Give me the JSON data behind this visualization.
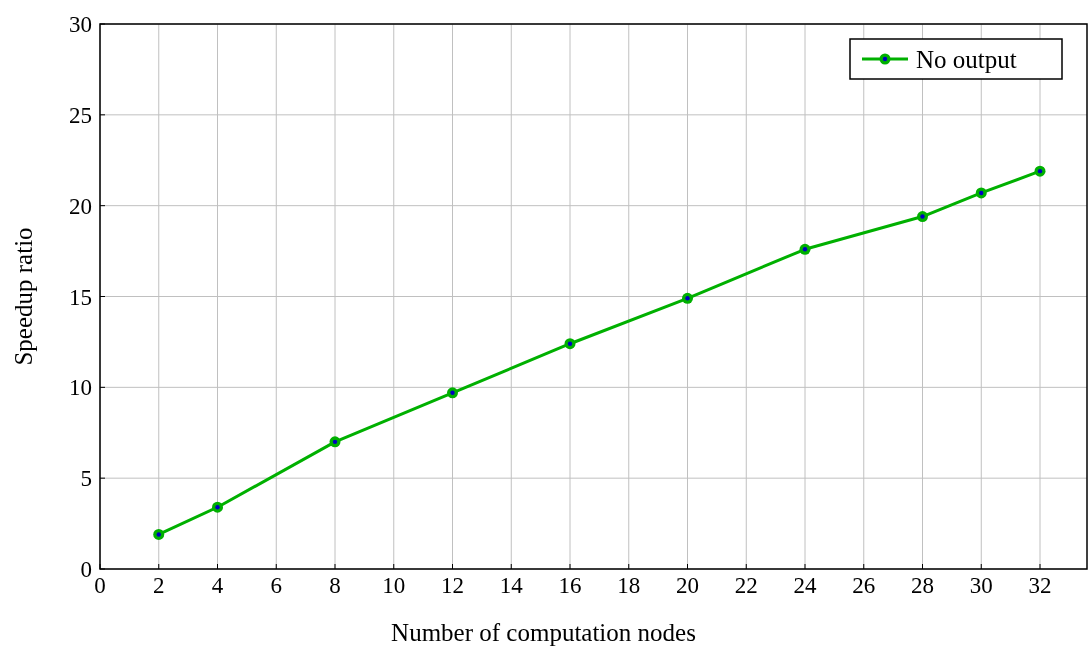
{
  "chart_data": {
    "type": "line",
    "xlabel": "Number of computation nodes",
    "ylabel": "Speedup ratio",
    "x": [
      2,
      4,
      8,
      12,
      16,
      20,
      24,
      28,
      30,
      32
    ],
    "series": [
      {
        "name": "No output",
        "color": "#00b000",
        "values": [
          1.9,
          3.4,
          7.0,
          9.7,
          12.4,
          14.9,
          17.6,
          19.4,
          20.7,
          21.9
        ]
      }
    ],
    "xlim": [
      0,
      33.6
    ],
    "xticks": [
      0,
      2,
      4,
      6,
      8,
      10,
      12,
      14,
      16,
      18,
      20,
      22,
      24,
      26,
      28,
      30,
      32
    ],
    "ylim": [
      0,
      30
    ],
    "yticks": [
      0,
      5,
      10,
      15,
      20,
      25,
      30
    ],
    "grid": true,
    "legend": "top right",
    "marker": "circle",
    "line_style": "solid"
  }
}
